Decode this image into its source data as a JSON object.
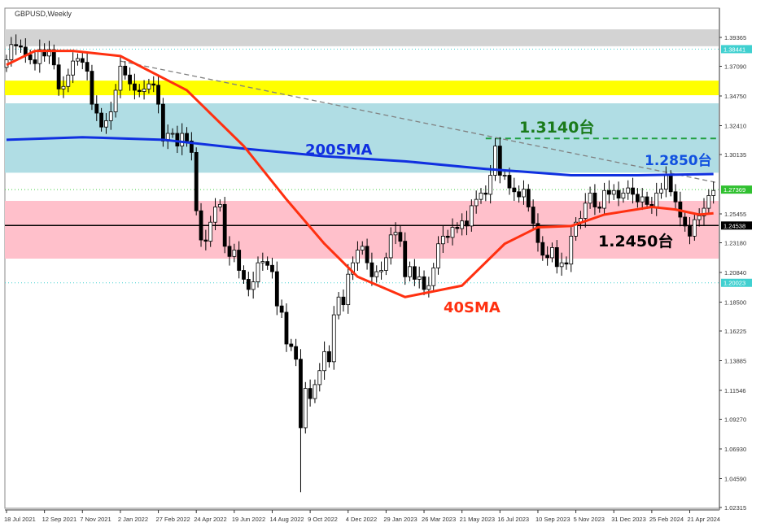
{
  "window": {
    "title": "GBPUSD,Weekly"
  },
  "colors": {
    "gray_zone": "#d3d3d3",
    "yellow_zone": "#ffff00",
    "blue_zone": "#b0dde4",
    "pink_zone": "#ffc0cb",
    "sma200": "#1030e0",
    "sma40": "#ff3010",
    "bull_body": "#ffffff",
    "bear_body": "#000000",
    "support_line": "#000000",
    "resistance_dashed": "#20a040",
    "trendline": "#808080",
    "cyan_dotted": "#40d0d0",
    "green_dotted": "#40d040"
  },
  "annotations": {
    "r1": {
      "text": "1.3140台",
      "color": "#1a7a1a"
    },
    "sma200": {
      "text": "200SMA",
      "color": "#1030e0"
    },
    "r2": {
      "text": "1.2850台",
      "color": "#1050e0"
    },
    "s1": {
      "text": "1.2450台",
      "color": "#000000"
    },
    "sma40": {
      "text": "40SMA",
      "color": "#ff3010"
    }
  },
  "chart_data": {
    "type": "candlestick",
    "title": "GBPUSD,Weekly",
    "x_start": "2021-07-18",
    "x_interval": "weekly",
    "ylim": [
      1.02315,
      1.4
    ],
    "y_ticks": [
      "1.39365",
      "1.37090",
      "1.34750",
      "1.32410",
      "1.30135",
      "1.25455",
      "1.23180",
      "1.20840",
      "1.18500",
      "1.16225",
      "1.13885",
      "1.11546",
      "1.09270",
      "1.06930",
      "1.04590",
      "1.02315"
    ],
    "x_ticks": [
      {
        "label": "18 Jul 2021",
        "week": 0
      },
      {
        "label": "12 Sep 2021",
        "week": 8
      },
      {
        "label": "7 Nov 2021",
        "week": 16
      },
      {
        "label": "2 Jan 2022",
        "week": 24
      },
      {
        "label": "27 Feb 2022",
        "week": 32
      },
      {
        "label": "24 Apr 2022",
        "week": 40
      },
      {
        "label": "19 Jun 2022",
        "week": 48
      },
      {
        "label": "14 Aug 2022",
        "week": 56
      },
      {
        "label": "9 Oct 2022",
        "week": 64
      },
      {
        "label": "4 Dec 2022",
        "week": 72
      },
      {
        "label": "29 Jan 2023",
        "week": 80
      },
      {
        "label": "26 Mar 2023",
        "week": 88
      },
      {
        "label": "21 May 2023",
        "week": 96
      },
      {
        "label": "16 Jul 2023",
        "week": 104
      },
      {
        "label": "10 Sep 2023",
        "week": 112
      },
      {
        "label": "5 Nov 2023",
        "week": 120
      },
      {
        "label": "31 Dec 2023",
        "week": 128
      },
      {
        "label": "25 Feb 2024",
        "week": 136
      },
      {
        "label": "21 Apr 2024",
        "week": 144
      }
    ],
    "closes": [
      1.376,
      1.388,
      1.387,
      1.386,
      1.38,
      1.376,
      1.373,
      1.384,
      1.379,
      1.384,
      1.372,
      1.353,
      1.355,
      1.364,
      1.375,
      1.377,
      1.374,
      1.367,
      1.341,
      1.334,
      1.323,
      1.328,
      1.335,
      1.352,
      1.371,
      1.364,
      1.357,
      1.352,
      1.351,
      1.353,
      1.357,
      1.356,
      1.341,
      1.312,
      1.318,
      1.318,
      1.308,
      1.318,
      1.312,
      1.303,
      1.257,
      1.234,
      1.233,
      1.248,
      1.26,
      1.262,
      1.229,
      1.221,
      1.226,
      1.21,
      1.203,
      1.195,
      1.201,
      1.216,
      1.217,
      1.214,
      1.209,
      1.182,
      1.177,
      1.152,
      1.15,
      1.14,
      1.086,
      1.117,
      1.109,
      1.12,
      1.131,
      1.146,
      1.138,
      1.175,
      1.189,
      1.183,
      1.207,
      1.216,
      1.226,
      1.229,
      1.216,
      1.205,
      1.209,
      1.21,
      1.22,
      1.238,
      1.24,
      1.233,
      1.205,
      1.213,
      1.203,
      1.205,
      1.195,
      1.198,
      1.212,
      1.231,
      1.237,
      1.236,
      1.244,
      1.243,
      1.249,
      1.245,
      1.261,
      1.266,
      1.271,
      1.27,
      1.285,
      1.308,
      1.285,
      1.285,
      1.275,
      1.272,
      1.268,
      1.274,
      1.26,
      1.247,
      1.232,
      1.222,
      1.22,
      1.228,
      1.213,
      1.216,
      1.215,
      1.237,
      1.248,
      1.251,
      1.263,
      1.271,
      1.26,
      1.259,
      1.273,
      1.27,
      1.273,
      1.267,
      1.271,
      1.275,
      1.27,
      1.264,
      1.268,
      1.262,
      1.26,
      1.271,
      1.274,
      1.285,
      1.272,
      1.264,
      1.252,
      1.245,
      1.237,
      1.25,
      1.253,
      1.259,
      1.269,
      1.273
    ],
    "notable_wicks": {
      "low": {
        "week": 62,
        "price": 1.0352
      },
      "high": {
        "week": 103,
        "price": 1.3142
      }
    },
    "sma40": [
      [
        0,
        1.372
      ],
      [
        6,
        1.383
      ],
      [
        14,
        1.383
      ],
      [
        24,
        1.379
      ],
      [
        38,
        1.352
      ],
      [
        50,
        1.308
      ],
      [
        59,
        1.266
      ],
      [
        67,
        1.231
      ],
      [
        74,
        1.205
      ],
      [
        84,
        1.189
      ],
      [
        96,
        1.198
      ],
      [
        105,
        1.231
      ],
      [
        112,
        1.244
      ],
      [
        119,
        1.245
      ],
      [
        126,
        1.254
      ],
      [
        136,
        1.26
      ],
      [
        141,
        1.258
      ],
      [
        146,
        1.254
      ],
      [
        149,
        1.255
      ]
    ],
    "sma200": [
      [
        0,
        1.313
      ],
      [
        16,
        1.315
      ],
      [
        33,
        1.313
      ],
      [
        50,
        1.306
      ],
      [
        67,
        1.3
      ],
      [
        84,
        1.296
      ],
      [
        101,
        1.29
      ],
      [
        119,
        1.285
      ],
      [
        133,
        1.285
      ],
      [
        149,
        1.286
      ]
    ],
    "trendline": [
      [
        24,
        1.375
      ],
      [
        150,
        1.279
      ]
    ],
    "zones": [
      {
        "name": "gray",
        "from": 1.3867,
        "to": 1.4
      },
      {
        "name": "yellow",
        "from": 1.3481,
        "to": 1.3596
      },
      {
        "name": "blue",
        "from": 1.287,
        "to": 1.3417
      },
      {
        "name": "pink",
        "from": 1.2193,
        "to": 1.2648
      }
    ],
    "levels": [
      {
        "name": "support",
        "price": 1.24538,
        "style": "solid",
        "label": "1.24538"
      },
      {
        "name": "resistance",
        "price": 1.314,
        "style": "dashed",
        "from_week": 101
      },
      {
        "name": "upper-dotted",
        "price": 1.38441,
        "style": "dotted",
        "label": "1.38441"
      },
      {
        "name": "lower-dotted",
        "price": 1.20023,
        "style": "dotted",
        "label": "1.20023"
      },
      {
        "name": "price-dotted",
        "price": 1.27369,
        "style": "dotted",
        "label": "1.27369"
      }
    ]
  }
}
